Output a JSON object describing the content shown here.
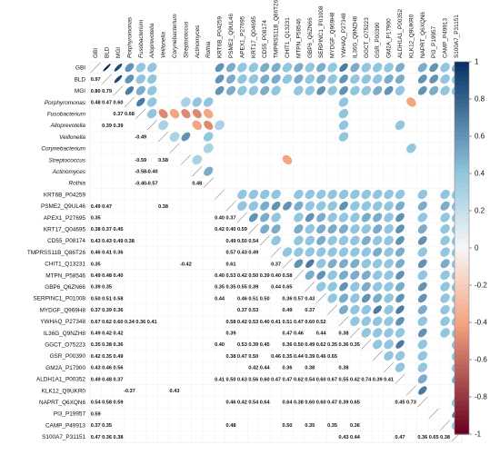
{
  "chart_data": {
    "type": "heatmap",
    "subtype": "correlation-matrix-mixed",
    "upper_shape": "ellipse",
    "lower_shape": "number",
    "title": "",
    "variables": [
      "GBI",
      "BLD",
      "MGI",
      "Porphyromonas",
      "Fusobacterium",
      "Alloprevotella",
      "Veillonella",
      "Corynebacterium",
      "Streptococcus",
      "Actinomyces",
      "Rothia",
      "KRT6B_P04259",
      "PSME2_Q9UL46",
      "APEX1_P27695",
      "KRT17_Q04695",
      "CD55_P08174",
      "TMPRSS11B_Q86T26",
      "CHIT1_Q13231",
      "MTPN_P58546",
      "GBP6_Q6ZN66",
      "SERPINC1_P01008",
      "MYDGF_Q969H8",
      "YWHAQ_P27348",
      "IL36G_Q9NZH8",
      "GGCT_O75223",
      "GSR_P00390",
      "GM2A_P17900",
      "ALDH1A1_P00352",
      "KLK12_Q9UKR0",
      "NAPRT_Q6XQN6",
      "PI3_P19957",
      "CAMP_P49913",
      "S100A7_P31151"
    ],
    "italic_variables": [
      "Porphyromonas",
      "Fusobacterium",
      "Alloprevotella",
      "Veillonella",
      "Corynebacterium",
      "Streptococcus",
      "Actinomyces",
      "Rothia"
    ],
    "lower_triangle": [
      [],
      [
        0.97
      ],
      [
        0.8,
        0.79
      ],
      [
        0.48,
        0.47,
        0.6
      ],
      [
        null,
        null,
        0.37,
        0.68
      ],
      [
        null,
        0.39,
        0.39,
        null,
        null
      ],
      [
        null,
        null,
        null,
        null,
        -0.49,
        null
      ],
      [],
      [
        null,
        null,
        null,
        null,
        -0.59,
        null,
        0.58
      ],
      [
        null,
        null,
        null,
        null,
        -0.58,
        -0.4,
        null,
        null
      ],
      [
        null,
        null,
        null,
        null,
        -0.4,
        -0.57,
        null,
        null,
        null,
        0.48
      ],
      [],
      [
        0.49,
        0.47,
        null,
        null,
        null,
        null,
        0.38
      ],
      [
        0.35,
        null,
        null,
        null,
        null,
        null,
        null,
        null,
        null,
        null,
        null,
        0.4,
        0.37
      ],
      [
        0.38,
        0.37,
        0.45,
        null,
        null,
        null,
        null,
        null,
        null,
        null,
        null,
        0.42,
        0.4,
        0.59
      ],
      [
        0.43,
        0.43,
        0.49,
        0.38,
        null,
        null,
        null,
        null,
        null,
        null,
        null,
        null,
        0.49,
        0.5,
        0.54
      ],
      [
        0.46,
        0.41,
        0.36,
        null,
        null,
        null,
        null,
        null,
        null,
        null,
        null,
        null,
        0.57,
        0.43,
        0.49
      ],
      [
        0.35,
        null,
        null,
        null,
        null,
        null,
        null,
        null,
        -0.42,
        null,
        null,
        null,
        0.61,
        null,
        null,
        null,
        0.37
      ],
      [
        0.49,
        0.48,
        0.4,
        null,
        null,
        null,
        null,
        null,
        null,
        null,
        null,
        0.4,
        0.53,
        0.42,
        0.5,
        0.39,
        0.4,
        0.58
      ],
      [
        0.39,
        0.35,
        null,
        null,
        null,
        null,
        null,
        null,
        null,
        null,
        null,
        0.35,
        0.35,
        0.55,
        0.39,
        null,
        0.44,
        0.65
      ],
      [
        0.5,
        0.51,
        0.58,
        null,
        null,
        null,
        null,
        null,
        null,
        null,
        null,
        0.44,
        null,
        0.46,
        0.51,
        0.5,
        null,
        0.36,
        0.57,
        0.43
      ],
      [
        0.37,
        0.39,
        0.36,
        null,
        null,
        null,
        null,
        null,
        null,
        null,
        null,
        null,
        null,
        0.37,
        0.53,
        null,
        null,
        0.49,
        null,
        0.37
      ],
      [
        0.67,
        0.62,
        0.6,
        0.34,
        0.36,
        0.41,
        null,
        null,
        null,
        null,
        null,
        null,
        0.58,
        0.42,
        0.53,
        0.4,
        0.41,
        0.51,
        0.47,
        0.6,
        0.52
      ],
      [
        0.49,
        0.42,
        0.42,
        null,
        null,
        null,
        null,
        null,
        null,
        null,
        null,
        null,
        0.39,
        null,
        null,
        null,
        null,
        0.47,
        0.46,
        null,
        0.44,
        null,
        0.38
      ],
      [
        0.35,
        0.38,
        0.36,
        null,
        null,
        null,
        null,
        null,
        null,
        null,
        null,
        0.4,
        null,
        0.53,
        0.39,
        0.45,
        null,
        0.36,
        0.5,
        0.49,
        0.62,
        0.35,
        0.36,
        0.35
      ],
      [
        0.42,
        0.35,
        0.49,
        null,
        null,
        null,
        null,
        null,
        null,
        null,
        null,
        null,
        0.38,
        0.47,
        0.5,
        null,
        0.46,
        0.35,
        0.44,
        0.39,
        0.46,
        0.65
      ],
      [
        0.43,
        0.46,
        0.56,
        null,
        null,
        null,
        null,
        null,
        null,
        null,
        null,
        null,
        null,
        null,
        0.42,
        0.44,
        null,
        0.36,
        null,
        0.38,
        null,
        null,
        0.38
      ],
      [
        0.49,
        0.48,
        0.37,
        null,
        null,
        null,
        null,
        null,
        null,
        null,
        null,
        0.41,
        0.5,
        0.63,
        0.56,
        0.6,
        0.47,
        0.47,
        0.62,
        0.54,
        0.6,
        0.67,
        0.55,
        0.42,
        0.74,
        0.39,
        0.41
      ],
      [
        null,
        null,
        null,
        -0.37,
        null,
        null,
        null,
        0.43
      ],
      [
        0.54,
        0.58,
        0.59,
        null,
        null,
        null,
        null,
        null,
        null,
        null,
        null,
        null,
        0.46,
        0.42,
        0.54,
        0.64,
        null,
        0.64,
        0.38,
        0.6,
        0.6,
        0.47,
        0.39,
        0.65,
        null,
        null,
        null,
        0.45,
        0.73
      ],
      [
        0.59
      ],
      [
        0.37,
        0.35,
        null,
        null,
        null,
        null,
        null,
        null,
        null,
        null,
        null,
        null,
        0.48,
        null,
        null,
        null,
        null,
        0.5,
        null,
        0.35,
        null,
        0.35,
        null,
        0.36
      ],
      [
        0.47,
        0.36,
        0.38,
        null,
        null,
        null,
        null,
        null,
        null,
        null,
        null,
        null,
        null,
        null,
        null,
        null,
        null,
        null,
        null,
        null,
        null,
        null,
        0.43,
        0.44,
        null,
        null,
        null,
        0.47,
        null,
        0.36,
        0.65,
        0.38
      ]
    ],
    "upper_triangle": [
      [],
      [
        1.0
      ],
      [
        0.9,
        0.9
      ],
      [
        0.6,
        0.6,
        0.7
      ],
      [
        0.4,
        0.4,
        0.5,
        0.7
      ],
      [
        0.4,
        0.4,
        0.4,
        0.4,
        0.4
      ],
      [
        null,
        null,
        null,
        null,
        -0.5,
        0.3
      ],
      [
        null,
        null,
        null,
        null,
        -0.4,
        null,
        0.3
      ],
      [
        null,
        null,
        null,
        0.3,
        -0.5,
        null,
        0.6,
        null
      ],
      [
        null,
        null,
        null,
        0.4,
        -0.5,
        -0.4,
        null,
        null,
        0.3
      ],
      [
        null,
        null,
        null,
        0.4,
        -0.4,
        -0.5,
        0.4,
        0.3,
        null,
        0.5
      ],
      [
        0.6,
        0.6,
        0.6,
        null,
        null,
        0.3
      ],
      [
        0.5,
        0.5,
        0.5
      ],
      [
        0.4,
        0.4,
        0.4,
        null,
        null,
        null,
        null,
        null,
        null,
        null,
        null,
        0.4,
        0.4
      ],
      [
        0.4,
        0.4,
        0.4,
        null,
        null,
        null,
        null,
        null,
        null,
        null,
        null,
        0.4,
        0.4,
        0.6
      ],
      [
        0.5,
        0.5,
        0.5,
        null,
        null,
        null,
        null,
        null,
        null,
        null,
        null,
        0.4,
        0.5,
        0.5,
        0.5
      ],
      [
        0.5,
        0.5,
        0.4,
        null,
        null,
        null,
        null,
        null,
        null,
        null,
        null,
        0.4,
        0.6,
        0.4,
        0.5,
        0.4
      ],
      [
        0.4,
        0.4,
        null,
        null,
        null,
        null,
        null,
        null,
        -0.4,
        null,
        null,
        null,
        0.6,
        null,
        null,
        null,
        0.4
      ],
      [
        0.5,
        0.5,
        0.4,
        null,
        null,
        null,
        null,
        null,
        null,
        null,
        null,
        0.4,
        0.5,
        0.4,
        0.5,
        0.4,
        0.4,
        0.6
      ],
      [
        0.4,
        0.4,
        0.4,
        null,
        null,
        null,
        null,
        null,
        null,
        null,
        null,
        0.4,
        0.4,
        0.6,
        0.4,
        0.4,
        0.4,
        0.7,
        0.5
      ],
      [
        0.5,
        0.5,
        0.6,
        null,
        null,
        null,
        null,
        null,
        null,
        null,
        null,
        0.4,
        0.4,
        0.5,
        0.5,
        0.5,
        0.4,
        0.4,
        0.6,
        0.4
      ],
      [
        0.4,
        0.4,
        0.4,
        null,
        null,
        null,
        null,
        null,
        null,
        null,
        null,
        0.4,
        0.4,
        0.4,
        0.5,
        0.4,
        0.4,
        0.5,
        0.4,
        0.4,
        0.4
      ],
      [
        0.7,
        0.6,
        0.6,
        0.4,
        0.4,
        0.4,
        0.4,
        null,
        null,
        null,
        null,
        0.4,
        0.6,
        0.4,
        0.5,
        0.4,
        0.4,
        0.5,
        0.5,
        0.6,
        0.5,
        0.5
      ],
      [
        0.5,
        0.4,
        0.4,
        null,
        null,
        null,
        null,
        null,
        null,
        null,
        null,
        0.4,
        0.4,
        0.4,
        0.4,
        0.4,
        0.4,
        0.5,
        0.5,
        0.4,
        0.4,
        0.4,
        0.4
      ],
      [
        0.4,
        0.4,
        0.4,
        null,
        null,
        null,
        null,
        null,
        null,
        null,
        null,
        0.4,
        0.4,
        0.5,
        0.4,
        0.5,
        0.4,
        0.4,
        0.5,
        0.5,
        0.6,
        0.4,
        0.4,
        0.4
      ],
      [
        0.4,
        0.4,
        0.5,
        null,
        null,
        null,
        null,
        null,
        null,
        null,
        null,
        0.4,
        0.4,
        0.5,
        0.5,
        0.4,
        0.5,
        0.4,
        0.4,
        0.4,
        0.5,
        0.7,
        0.4,
        0.4,
        0.4
      ],
      [
        0.4,
        0.5,
        0.6,
        null,
        null,
        null,
        null,
        null,
        null,
        null,
        null,
        0.4,
        0.4,
        0.4,
        0.4,
        0.4,
        0.4,
        0.4,
        0.4,
        0.4,
        0.4,
        0.4,
        0.4,
        0.4,
        0.4,
        0.4
      ],
      [
        0.5,
        0.5,
        0.4,
        null,
        null,
        0.4,
        null,
        null,
        null,
        null,
        null,
        0.4,
        0.5,
        0.6,
        0.6,
        0.6,
        0.5,
        0.5,
        0.6,
        0.5,
        0.6,
        0.7,
        0.6,
        0.4,
        0.7,
        0.4,
        0.4
      ],
      [
        null,
        null,
        null,
        -0.4,
        null,
        null,
        null,
        0.4
      ],
      [
        0.5,
        0.6,
        0.6,
        null,
        null,
        null,
        null,
        null,
        null,
        null,
        null,
        0.4,
        0.5,
        0.4,
        0.5,
        0.6,
        0.4,
        0.6,
        0.4,
        0.6,
        0.6,
        0.5,
        0.4,
        0.6,
        0.4,
        0.4,
        0.4,
        0.5,
        0.7
      ],
      [
        0.6,
        0.6,
        0.5
      ],
      [
        0.4,
        0.4,
        0.4,
        null,
        null,
        null,
        null,
        null,
        null,
        null,
        null,
        0.4,
        0.5,
        0.4,
        0.4,
        0.4,
        0.4,
        0.5,
        0.4,
        0.4,
        0.4,
        0.4,
        0.4,
        0.4
      ],
      [
        0.5,
        0.4,
        0.4,
        null,
        null,
        null,
        null,
        null,
        null,
        null,
        null,
        0.4,
        0.4,
        0.4,
        0.4,
        0.4,
        0.4,
        0.4,
        0.4,
        0.4,
        0.4,
        0.4,
        0.4,
        0.4,
        0.4,
        0.4,
        0.4,
        0.5,
        null,
        0.4,
        0.7,
        0.4
      ]
    ],
    "colorbar": {
      "range": [
        -1,
        1
      ],
      "ticks": [
        "1",
        "0.8",
        "0.6",
        "0.4",
        "0.2",
        "0",
        "-0.2",
        "-0.4",
        "-0.6",
        "-0.8",
        "-1"
      ],
      "colors": {
        "neg_strong": "#67001f",
        "neg": "#f4a582",
        "zero": "#f7f7f7",
        "pos": "#92c5de",
        "pos_strong": "#053061"
      }
    }
  }
}
